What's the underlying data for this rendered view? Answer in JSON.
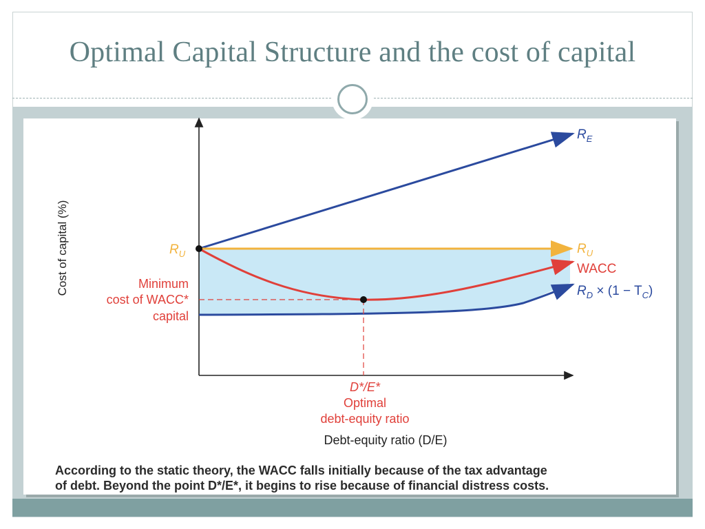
{
  "slide": {
    "title": "Optimal Capital Structure and the cost of capital"
  },
  "diagram": {
    "y_axis_label": "Cost of capital (%)",
    "x_axis_label": "Debt-equity ratio (D/E)",
    "ru_left_label": "R",
    "ru_left_sub": "U",
    "min_label_line1": "Minimum",
    "min_label_line2": "cost of WACC*",
    "min_label_line3": "capital",
    "optimal_line1": "D*/E*",
    "optimal_line2": "Optimal",
    "optimal_line3": "debt-equity ratio",
    "curve_labels": {
      "re": {
        "main": "R",
        "sub": "E"
      },
      "ru": {
        "main": "R",
        "sub": "U"
      },
      "wacc": "WACC",
      "rd": {
        "main": "R",
        "sub": "D",
        "rest": " × (1 − T",
        "sub2": "C",
        "close": ")"
      }
    },
    "caption_line1": "According to the static theory, the WACC falls initially because of the tax advantage",
    "caption_line2": "of debt. Beyond the point D*/E*, it begins to rise because of financial distress costs."
  },
  "colors": {
    "re_line": "#2b4a9e",
    "ru_line": "#f2b33d",
    "wacc_line": "#e0403a",
    "rd_line": "#2b4a9e",
    "shade": "#c9e8f6",
    "red_text": "#e0403a",
    "orange_text": "#f2b33d",
    "blue_text": "#2b4a9e",
    "title_color": "#5f7f82"
  }
}
